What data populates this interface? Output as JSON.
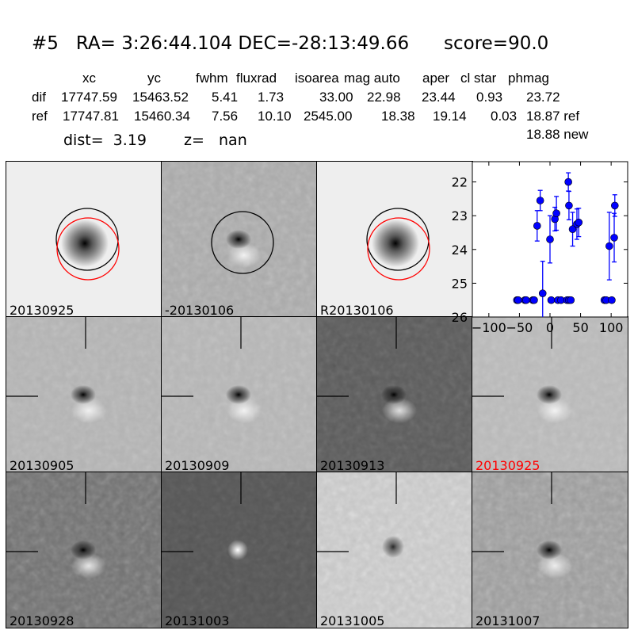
{
  "header": {
    "title": "#5   RA= 3:26:44.104 DEC=-28:13:49.66      score=90.0",
    "columns": [
      "xc",
      "yc",
      "fwhm",
      "fluxrad",
      "isoarea",
      "mag auto",
      "aper",
      "cl star",
      "phmag"
    ],
    "rows": [
      {
        "name": "dif",
        "values": [
          "17747.59",
          "15463.52",
          "5.41",
          "1.73",
          "33.00",
          "22.98",
          "23.44",
          "0.93",
          "23.72"
        ]
      },
      {
        "name": "ref",
        "values": [
          "17747.81",
          "15460.34",
          "7.56",
          "10.10",
          "2545.00",
          "18.38",
          "19.14",
          "0.03",
          "18.87 ref"
        ]
      }
    ],
    "extra_phmag": "18.88 new",
    "dist": "dist=  3.19",
    "z": "z=   nan"
  },
  "stamps": [
    {
      "label": "20130925",
      "bg": "#eeeeee",
      "noise": 0.05,
      "source": "dark-point",
      "circles": [
        "black",
        "red"
      ]
    },
    {
      "label": "-20130106",
      "bg": "#a9a9a9",
      "noise": 0.35,
      "source": "dipole",
      "circles": [
        "black"
      ]
    },
    {
      "label": "R20130106",
      "bg": "#eeeeee",
      "noise": 0.05,
      "source": "dark-point",
      "circles": [
        "black",
        "red"
      ]
    },
    {
      "label": "20130905",
      "bg": "#b2b2b2",
      "noise": 0.3,
      "source": "dipole",
      "circles": []
    },
    {
      "label": "20130909",
      "bg": "#b4b4b4",
      "noise": 0.3,
      "source": "dipole",
      "circles": []
    },
    {
      "label": "20130913",
      "bg": "#5c5c5c",
      "noise": 0.35,
      "source": "dipole",
      "circles": []
    },
    {
      "label": "20130925",
      "bg": "#b8b8b8",
      "noise": 0.3,
      "source": "dipole",
      "circles": [],
      "label_color": "#ff0000"
    },
    {
      "label": "20130928",
      "bg": "#727272",
      "noise": 0.4,
      "source": "dipole",
      "circles": []
    },
    {
      "label": "20131003",
      "bg": "#565656",
      "noise": 0.3,
      "source": "bright-point",
      "circles": []
    },
    {
      "label": "20131005",
      "bg": "#c6c6c6",
      "noise": 0.55,
      "source": "dark-point-faint",
      "circles": []
    },
    {
      "label": "20131007",
      "bg": "#9c9c9c",
      "noise": 0.4,
      "source": "dipole",
      "circles": []
    }
  ],
  "chart_data": {
    "type": "scatter",
    "title": "",
    "xlabel": "",
    "ylabel": "",
    "xlim": [
      -127,
      127
    ],
    "ylim": [
      26,
      21.4
    ],
    "y_inverted": true,
    "xticks": [
      -100,
      -50,
      0,
      50,
      100
    ],
    "yticks": [
      22,
      23,
      24,
      25,
      26
    ],
    "color": "#0000ff",
    "points": [
      {
        "x": -21,
        "y": 23.3,
        "err": 0.45
      },
      {
        "x": -16,
        "y": 22.55,
        "err": 0.3
      },
      {
        "x": -12,
        "y": 25.3,
        "err": 0.95
      },
      {
        "x": 0,
        "y": 23.7,
        "err": 0.7
      },
      {
        "x": 8,
        "y": 23.1,
        "err": 0.35
      },
      {
        "x": 10.5,
        "y": 22.93,
        "err": 0.5
      },
      {
        "x": 30,
        "y": 22.0,
        "err": 0.27
      },
      {
        "x": 31,
        "y": 22.7,
        "err": 0.42
      },
      {
        "x": 37,
        "y": 23.4,
        "err": 0.5
      },
      {
        "x": 44,
        "y": 23.25,
        "err": 0.45
      },
      {
        "x": 47,
        "y": 23.2,
        "err": 0.42
      },
      {
        "x": 97,
        "y": 23.9,
        "err": 1.0
      },
      {
        "x": 105,
        "y": 23.65,
        "err": 0.72
      },
      {
        "x": 106,
        "y": 22.7,
        "err": 0.32
      }
    ],
    "limits": {
      "y": 25.5,
      "x": [
        -54,
        -52,
        -41,
        -39,
        -28,
        -26,
        2,
        13,
        18,
        28,
        31,
        34,
        89,
        92,
        101
      ]
    }
  }
}
